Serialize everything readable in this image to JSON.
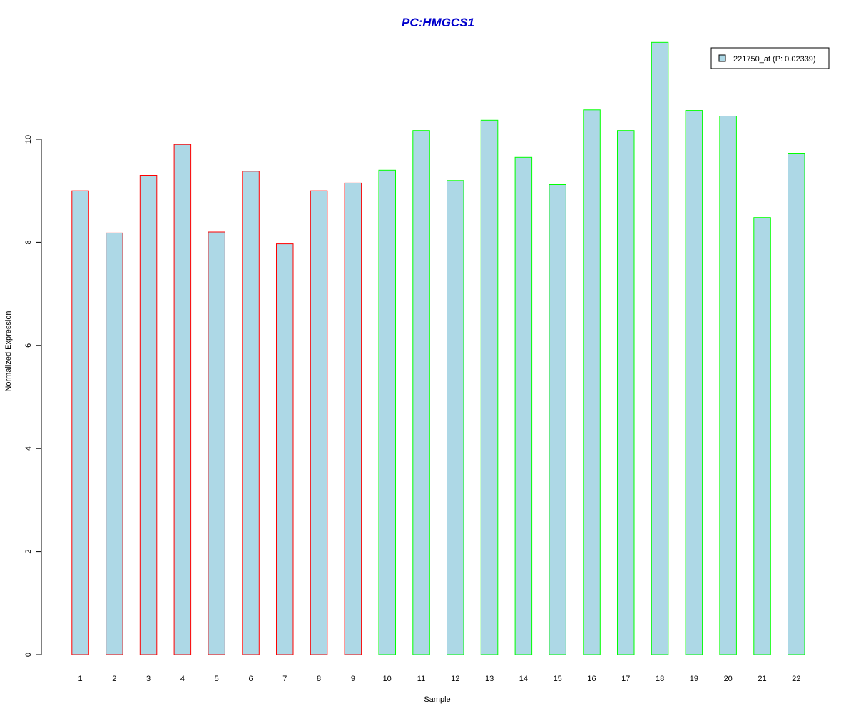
{
  "chart_data": {
    "type": "bar",
    "title": "PC:HMGCS1",
    "xlabel": "Sample",
    "ylabel": "Normalized Expression",
    "categories": [
      "1",
      "2",
      "3",
      "4",
      "5",
      "6",
      "7",
      "8",
      "9",
      "10",
      "11",
      "12",
      "13",
      "14",
      "15",
      "16",
      "17",
      "18",
      "19",
      "20",
      "21",
      "22"
    ],
    "series": [
      {
        "name": "221750_at (P: 0.02339)",
        "values": [
          9.0,
          8.18,
          9.3,
          9.9,
          8.2,
          9.38,
          7.97,
          9.0,
          9.15,
          9.4,
          10.17,
          9.2,
          10.37,
          9.65,
          9.12,
          10.57,
          10.17,
          11.88,
          10.56,
          10.45,
          8.48,
          9.73
        ]
      }
    ],
    "ylim": [
      0,
      11.88
    ],
    "yticks": [
      0,
      2,
      4,
      6,
      8,
      10
    ],
    "grid": false,
    "legend_position": "top-right",
    "group_count_first": 9,
    "colors": {
      "title": "#0000CC",
      "bar_fill": "#ADD8E6",
      "group1_border": "#FF0000",
      "group2_border": "#00FF00",
      "axis": "#000000",
      "background": "#FFFFFF"
    }
  }
}
